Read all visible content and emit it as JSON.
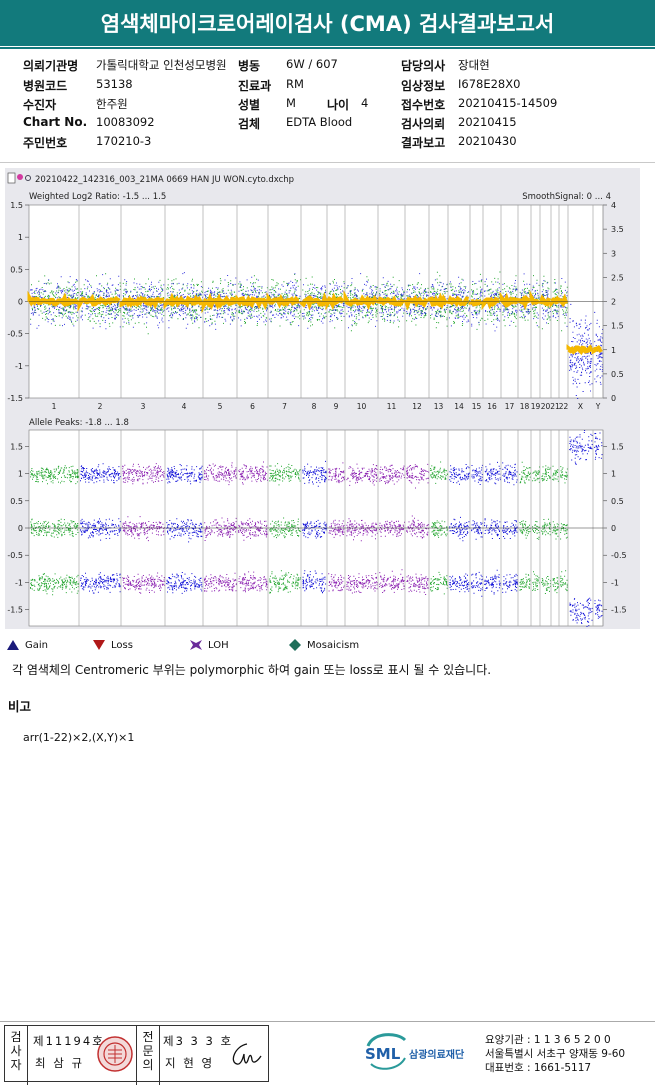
{
  "header": {
    "title": "염색체마이크로어레이검사 (CMA) 검사결과보고서"
  },
  "info": {
    "hospital_label": "의뢰기관명",
    "hospital": "가톨릭대학교 인천성모병원",
    "ward_label": "병동",
    "ward": "6W / 607",
    "doctor_label": "담당의사",
    "doctor": "장대현",
    "code_label": "병원코드",
    "code": "53138",
    "dept_label": "진료과",
    "dept": "RM",
    "clinical_label": "임상정보",
    "clinical": "I678E28X0",
    "patient_label": "수진자",
    "patient": "한주원",
    "sex_label": "성별",
    "sex": "M",
    "age_label": "나이",
    "age": "4",
    "receipt_label": "접수번호",
    "receipt": "20210415-14509",
    "chart_label": "Chart No.",
    "chart_no": "10083092",
    "specimen_label": "검체",
    "specimen": "EDTA Blood",
    "request_label": "검사의뢰",
    "request": "20210415",
    "resident_label": "주민번호",
    "resident": "170210-3",
    "report_label": "결과보고",
    "report": "20210430"
  },
  "chart_data": {
    "type": "scatter",
    "file_name": "20210422_142316_003_21MA 0669 HAN JU WON.cyto.dxchp",
    "top_panel": {
      "title": "Weighted Log2 Ratio: -1.5 ... 1.5",
      "right_title": "SmoothSignal: 0 ... 4",
      "ylim": [
        -1.5,
        1.5
      ],
      "y_ticks": [
        "1.5",
        "1",
        "0.5",
        "0",
        "-0.5",
        "-1",
        "-1.5"
      ],
      "right_ylim": [
        0,
        4
      ],
      "right_ticks": [
        "4",
        "3.5",
        "3",
        "2.5",
        "2",
        "1.5",
        "1",
        "0.5",
        "0"
      ],
      "chromosomes": [
        "1",
        "2",
        "3",
        "4",
        "5",
        "6",
        "7",
        "8",
        "9",
        "10",
        "11",
        "12",
        "13",
        "14",
        "15",
        "16",
        "17",
        "18",
        "19",
        "20",
        "21",
        "22",
        "X",
        "Y"
      ],
      "autosome_smooth_signal": 2,
      "sex_chromosome_smooth_signal": 1
    },
    "bottom_panel": {
      "title": "Allele Peaks: -1.8 ... 1.8",
      "ylim": [
        -1.8,
        1.8
      ],
      "y_ticks": [
        "1.5",
        "1",
        "0.5",
        "0",
        "-0.5",
        "-1",
        "-1.5"
      ],
      "right_ticks": [
        "1.5",
        "1",
        "0.5",
        "0",
        "-0.5",
        "-1",
        "-1.5"
      ],
      "autosome_peaks": [
        1.0,
        0,
        -1.0
      ],
      "sex_chromosome_peaks": [
        1.5,
        -1.5
      ]
    },
    "colors": {
      "green": "#22a52e",
      "blue": "#1010d8",
      "purple": "#8a1fb0",
      "smooth": "#f5b800"
    }
  },
  "legend": {
    "gain": "Gain",
    "loss": "Loss",
    "loh": "LOH",
    "mosaicism": "Mosaicism",
    "gain_color": "#1a1a7a",
    "loss_color": "#b01818",
    "loh_color": "#6a2b9a",
    "mosaicism_color": "#1f6f5a"
  },
  "note": "각 염색체의 Centromeric 부위는 polymorphic 하여 gain 또는 loss로 표시 될 수 있습니다.",
  "remarks": {
    "label": "비고",
    "text": "arr(1-22)×2,(X,Y)×1"
  },
  "footer": {
    "inspector_label": "검사자",
    "inspector_no": "제11194호",
    "inspector_name": "최 삼 규",
    "pathologist_label": "전문의",
    "pathologist_no": "제3 3 3 호",
    "pathologist_name": "지 현 영",
    "brand": "SML",
    "brand_name": "삼광의료재단",
    "org_code": "요양기관 : 1 1 3 6 5 2 0 0",
    "address": "서울특별시 서초구 양재동 9-60",
    "phone": "대표번호 : 1661-5117"
  }
}
